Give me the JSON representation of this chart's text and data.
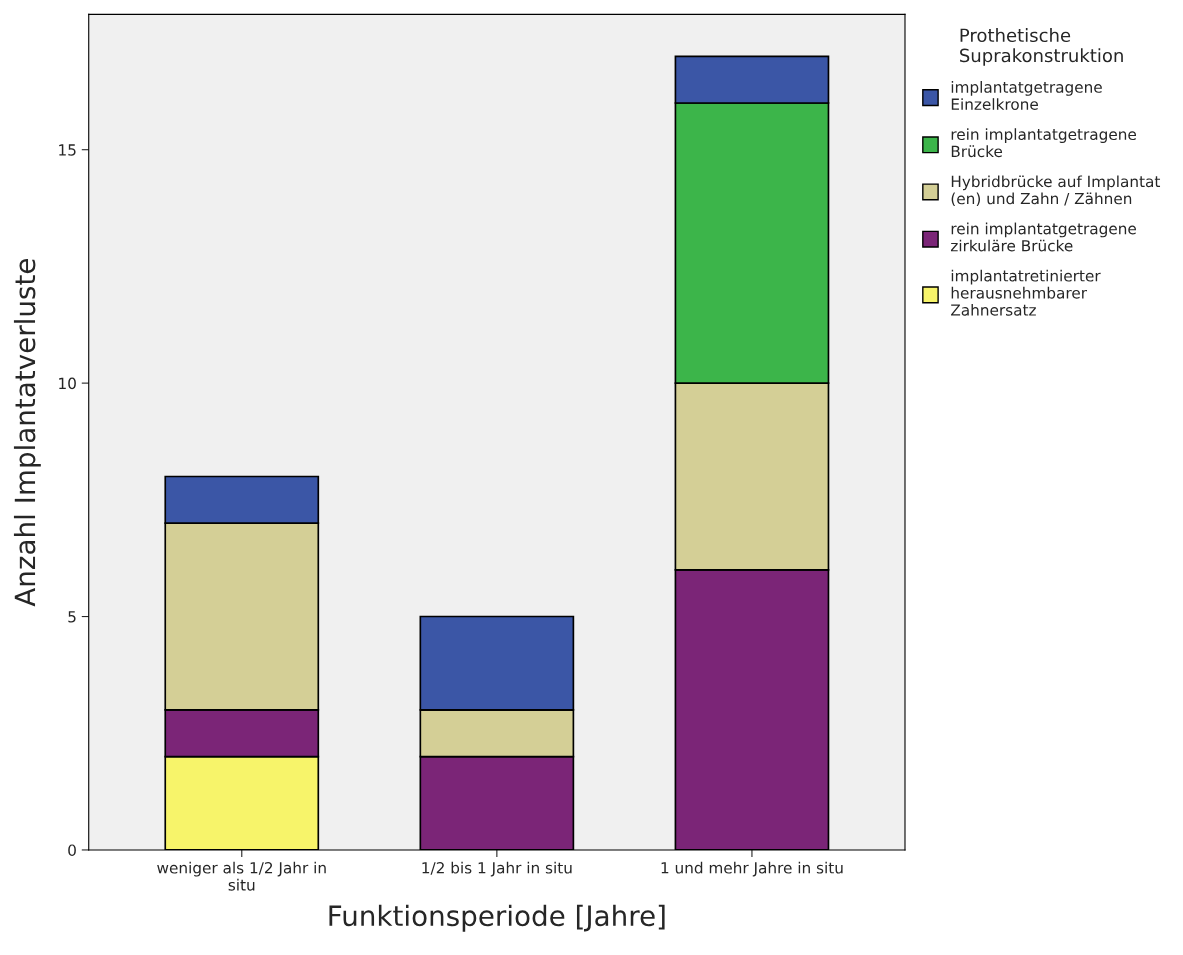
{
  "chart_data": {
    "type": "bar",
    "stacked": true,
    "xlabel": "Funktionsperiode [Jahre]",
    "ylabel": "Anzahl Implantatverluste",
    "legend_title": "Prothetische\nSuprakonstruktion",
    "legend": "right",
    "categories": [
      "weniger als 1/2 Jahr in\nsitu",
      "1/2 bis 1 Jahr in situ",
      "1 und mehr Jahre in situ"
    ],
    "series": [
      {
        "name": "implantatretinierter\nherausnehmbarer\nZahnersatz",
        "color": "#f7f46a",
        "values": [
          2,
          0,
          0
        ]
      },
      {
        "name": "rein implantatgetragene\nzirkuläre Brücke",
        "color": "#7b2577",
        "values": [
          1,
          2,
          6
        ]
      },
      {
        "name": "Hybridbrücke auf Implantat\n(en) und Zahn / Zähnen",
        "color": "#d4cf96",
        "values": [
          4,
          1,
          4
        ]
      },
      {
        "name": "rein implantatgetragene\nBrücke",
        "color": "#3cb54a",
        "values": [
          0,
          0,
          6
        ]
      },
      {
        "name": "implantatgetragene\nEinzelkrone",
        "color": "#3b56a6",
        "values": [
          1,
          2,
          1
        ]
      }
    ],
    "ylim": [
      0,
      17.9
    ],
    "yticks": [
      0,
      5,
      10,
      15
    ],
    "grid": false
  }
}
